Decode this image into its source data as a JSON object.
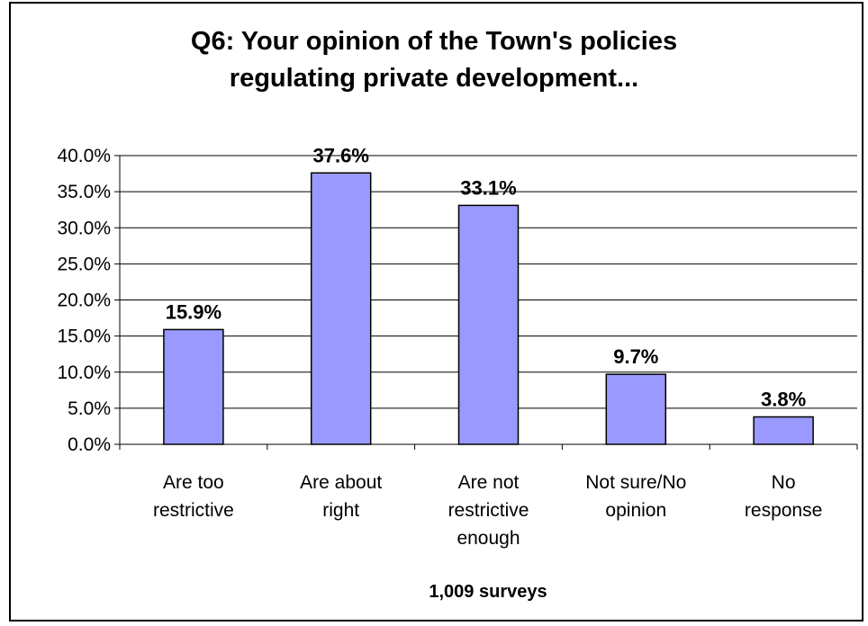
{
  "chart_data": {
    "type": "bar",
    "title_lines": [
      "Q6: Your opinion of the Town's policies",
      "regulating private development..."
    ],
    "categories": [
      [
        "Are too",
        "restrictive"
      ],
      [
        "Are about",
        "right"
      ],
      [
        "Are not",
        "restrictive",
        "enough"
      ],
      [
        "Not sure/No",
        "opinion"
      ],
      [
        "No",
        "response"
      ]
    ],
    "values": [
      15.9,
      37.6,
      33.1,
      9.7,
      3.8
    ],
    "data_labels": [
      "15.9%",
      "37.6%",
      "33.1%",
      "9.7%",
      "3.8%"
    ],
    "ylim": [
      0,
      40
    ],
    "yticks": [
      "0.0%",
      "5.0%",
      "10.0%",
      "15.0%",
      "20.0%",
      "25.0%",
      "30.0%",
      "35.0%",
      "40.0%"
    ],
    "xlabel": "1,009 surveys",
    "ylabel": "",
    "grid": true,
    "colors": {
      "bar_fill": "#9999ff",
      "bar_stroke": "#000000",
      "grid": "#000000"
    }
  }
}
